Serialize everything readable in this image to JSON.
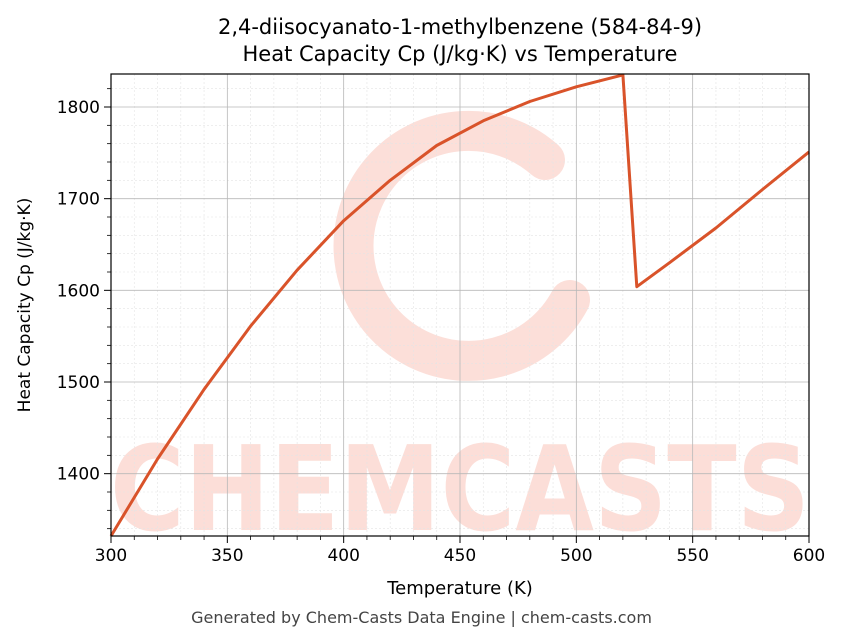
{
  "chart_data": {
    "type": "line",
    "title": "2,4-diisocyanato-1-methylbenzene (584-84-9)",
    "subtitle": "Heat Capacity Cp (J/kg·K) vs Temperature",
    "xlabel": "Temperature (K)",
    "ylabel": "Heat Capacity Cp (J/kg·K)",
    "xlim": [
      300,
      600
    ],
    "ylim": [
      1332,
      1836
    ],
    "xticks": [
      300,
      350,
      400,
      450,
      500,
      550,
      600
    ],
    "yticks": [
      1400,
      1500,
      1600,
      1700,
      1800
    ],
    "grid": true,
    "line_color": "#d9532a",
    "series": [
      {
        "x": [
          300,
          320,
          340,
          360,
          380,
          400,
          420,
          440,
          460,
          480,
          500,
          520,
          526,
          540,
          560,
          580,
          600
        ],
        "values": [
          1332,
          1416,
          1492,
          1561,
          1622,
          1676,
          1720,
          1758,
          1785,
          1806,
          1822,
          1835,
          1604,
          1630,
          1668,
          1710,
          1751
        ]
      }
    ],
    "watermark": "CHEMCASTS",
    "watermark_color": "#fcd9d2"
  },
  "footer": "Generated by Chem-Casts Data Engine | chem-casts.com"
}
